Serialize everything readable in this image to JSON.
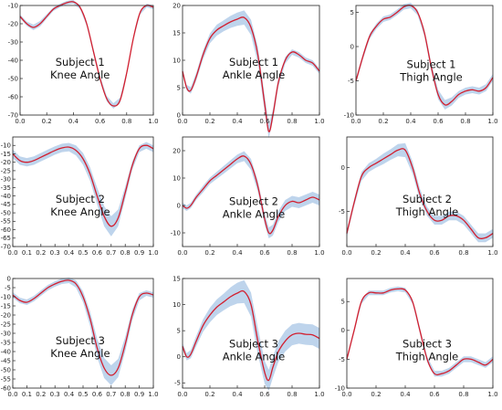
{
  "chart_data": [
    {
      "type": "line",
      "label": [
        "Subject 1",
        "Knee Angle"
      ],
      "xlim": [
        0,
        1
      ],
      "ylim": [
        -70,
        -10
      ],
      "yticks": [
        -10,
        -20,
        -30,
        -40,
        -50,
        -60,
        -70
      ],
      "xticks": [
        "0.0",
        "0.2",
        "0.4",
        "0.6",
        "0.8",
        "1.0"
      ],
      "x": [
        0,
        0.05,
        0.1,
        0.15,
        0.2,
        0.25,
        0.3,
        0.35,
        0.4,
        0.45,
        0.5,
        0.55,
        0.6,
        0.65,
        0.7,
        0.75,
        0.8,
        0.85,
        0.9,
        0.95,
        1.0
      ],
      "mean": [
        -16,
        -20,
        -22,
        -20,
        -16,
        -12,
        -10,
        -8.5,
        -8,
        -11,
        -20,
        -35,
        -50,
        -61,
        -65,
        -62,
        -47,
        -28,
        -14,
        -10,
        -11
      ],
      "sd": [
        1,
        1.2,
        1.5,
        1.5,
        1.2,
        1,
        1,
        1,
        1,
        1,
        1.2,
        1.5,
        1.5,
        1.5,
        1.5,
        1.5,
        1.2,
        1,
        1,
        1,
        1
      ]
    },
    {
      "type": "line",
      "label": [
        "Subject 1",
        "Ankle Angle"
      ],
      "xlim": [
        0,
        1
      ],
      "ylim": [
        0,
        20
      ],
      "yticks": [
        20,
        15,
        10,
        5,
        0
      ],
      "xticks": [
        "0.0",
        "0.2",
        "0.4",
        "0.6",
        "0.8",
        "1.0"
      ],
      "x": [
        0,
        0.03,
        0.06,
        0.1,
        0.15,
        0.2,
        0.25,
        0.3,
        0.35,
        0.4,
        0.45,
        0.5,
        0.55,
        0.6,
        0.63,
        0.66,
        0.7,
        0.75,
        0.8,
        0.85,
        0.9,
        0.95,
        1.0
      ],
      "mean": [
        8,
        5,
        4.5,
        7,
        11,
        14,
        15.5,
        16.3,
        17,
        17.5,
        17.8,
        16,
        11,
        2,
        -3,
        0,
        6,
        10,
        11.5,
        11,
        10,
        9.5,
        8
      ],
      "sd": [
        0.5,
        0.5,
        0.6,
        0.7,
        0.8,
        0.9,
        1,
        1,
        1.1,
        1.2,
        1.3,
        1.4,
        1.5,
        1.5,
        1.2,
        1,
        0.8,
        0.6,
        0.5,
        0.5,
        0.5,
        0.5,
        0.5
      ]
    },
    {
      "type": "line",
      "label": [
        "Subject 1",
        "Thigh Angle"
      ],
      "xlim": [
        0,
        1
      ],
      "ylim": [
        -10,
        6
      ],
      "yticks": [
        5,
        0,
        -5,
        -10
      ],
      "xticks": [
        "0.0",
        "0.2",
        "0.4",
        "0.6",
        "0.8",
        "1.0"
      ],
      "x": [
        0,
        0.05,
        0.1,
        0.15,
        0.2,
        0.25,
        0.3,
        0.35,
        0.4,
        0.45,
        0.5,
        0.55,
        0.6,
        0.65,
        0.7,
        0.75,
        0.8,
        0.85,
        0.9,
        0.95,
        1.0
      ],
      "mean": [
        -5,
        -1.5,
        1.5,
        3,
        4,
        4.3,
        5,
        5.8,
        6,
        5,
        2,
        -3,
        -7,
        -8.5,
        -8,
        -7,
        -6.5,
        -6.3,
        -6.5,
        -6,
        -4.5
      ],
      "sd": [
        0.4,
        0.4,
        0.4,
        0.4,
        0.4,
        0.4,
        0.4,
        0.4,
        0.4,
        0.4,
        0.5,
        0.6,
        0.7,
        0.7,
        0.6,
        0.5,
        0.5,
        0.5,
        0.5,
        0.5,
        0.5
      ]
    },
    {
      "type": "line",
      "label": [
        "Subject 2",
        "Knee Angle"
      ],
      "xlim": [
        0,
        1
      ],
      "ylim": [
        -70,
        -5
      ],
      "yticks": [
        -10,
        -15,
        -20,
        -25,
        -30,
        -35,
        -40,
        -45,
        -50,
        -55,
        -60,
        -65,
        -70
      ],
      "xticks": [
        "0.0",
        "0.1",
        "0.2",
        "0.3",
        "0.4",
        "0.5",
        "0.6",
        "0.7",
        "0.8",
        "0.9",
        "1.0"
      ],
      "x": [
        0,
        0.05,
        0.1,
        0.15,
        0.2,
        0.25,
        0.3,
        0.35,
        0.4,
        0.45,
        0.5,
        0.55,
        0.6,
        0.65,
        0.7,
        0.75,
        0.8,
        0.85,
        0.9,
        0.95,
        1.0
      ],
      "mean": [
        -15,
        -19,
        -20,
        -19,
        -17,
        -15,
        -13,
        -11.5,
        -11,
        -13,
        -18,
        -27,
        -40,
        -52,
        -58,
        -53,
        -38,
        -22,
        -12,
        -10,
        -12
      ],
      "sd": [
        2.5,
        2.5,
        2.5,
        2.5,
        2.5,
        2.5,
        2.5,
        2.5,
        2.5,
        3,
        3.5,
        4,
        5,
        6,
        6,
        5,
        3.5,
        2.5,
        2,
        2,
        2
      ]
    },
    {
      "type": "line",
      "label": [
        "Subject 2",
        "Ankle Angle"
      ],
      "xlim": [
        0,
        1
      ],
      "ylim": [
        -15,
        25
      ],
      "yticks": [
        20,
        10,
        0,
        -10
      ],
      "xticks": [
        "0.0",
        "0.2",
        "0.4",
        "0.6",
        "0.8",
        "1.0"
      ],
      "x": [
        0,
        0.03,
        0.06,
        0.1,
        0.15,
        0.2,
        0.25,
        0.3,
        0.35,
        0.4,
        0.45,
        0.5,
        0.55,
        0.6,
        0.63,
        0.66,
        0.7,
        0.75,
        0.8,
        0.85,
        0.9,
        0.95,
        1.0
      ],
      "mean": [
        0,
        -1,
        0,
        3,
        6,
        9,
        11,
        13,
        15,
        17,
        18,
        15,
        7,
        -5,
        -10,
        -9,
        -4,
        0,
        1.5,
        1,
        2,
        3,
        2
      ],
      "sd": [
        1,
        1,
        1,
        1,
        1.2,
        1.2,
        1.3,
        1.4,
        1.5,
        1.6,
        1.8,
        2,
        2,
        2,
        2,
        2,
        2,
        2,
        2,
        2,
        2,
        2,
        2
      ]
    },
    {
      "type": "line",
      "label": [
        "Subject 2",
        "Thigh Angle"
      ],
      "xlim": [
        0,
        1
      ],
      "ylim": [
        -9,
        3.5
      ],
      "yticks": [
        0,
        -5
      ],
      "xticks": [
        "0.0",
        "0.2",
        "0.4",
        "0.6",
        "0.8",
        "1.0"
      ],
      "x": [
        0,
        0.05,
        0.1,
        0.15,
        0.2,
        0.25,
        0.3,
        0.35,
        0.4,
        0.45,
        0.5,
        0.55,
        0.6,
        0.65,
        0.7,
        0.75,
        0.8,
        0.85,
        0.9,
        0.95,
        1.0
      ],
      "mean": [
        -7.5,
        -4,
        -1,
        0,
        0.5,
        1,
        1.5,
        2,
        2,
        0,
        -3,
        -5,
        -6,
        -6,
        -5.5,
        -5.5,
        -6,
        -7,
        -8,
        -8,
        -7.5
      ],
      "sd": [
        0.4,
        0.4,
        0.5,
        0.5,
        0.5,
        0.6,
        0.6,
        0.7,
        0.8,
        0.7,
        0.6,
        0.5,
        0.5,
        0.5,
        0.5,
        0.5,
        0.5,
        0.5,
        0.5,
        0.5,
        0.5
      ]
    },
    {
      "type": "line",
      "label": [
        "Subject 3",
        "Knee Angle"
      ],
      "xlim": [
        0,
        1
      ],
      "ylim": [
        -60,
        0
      ],
      "yticks": [
        0,
        -5,
        -10,
        -15,
        -20,
        -25,
        -30,
        -35,
        -40,
        -45,
        -50,
        -55,
        -60
      ],
      "xticks": [
        "0.0",
        "0.1",
        "0.2",
        "0.3",
        "0.4",
        "0.5",
        "0.6",
        "0.7",
        "0.8",
        "0.9",
        "1.0"
      ],
      "x": [
        0,
        0.05,
        0.1,
        0.15,
        0.2,
        0.25,
        0.3,
        0.35,
        0.4,
        0.45,
        0.5,
        0.55,
        0.6,
        0.65,
        0.7,
        0.75,
        0.8,
        0.85,
        0.9,
        0.95,
        1.0
      ],
      "mean": [
        -9,
        -12,
        -13,
        -11,
        -8,
        -5,
        -3,
        -1.5,
        -1,
        -3,
        -10,
        -22,
        -38,
        -49,
        -53,
        -49,
        -36,
        -20,
        -10,
        -8,
        -9
      ],
      "sd": [
        1.5,
        1.5,
        1.5,
        1.5,
        1.5,
        1.5,
        1.5,
        1.5,
        1.5,
        2,
        3,
        4,
        5,
        5.5,
        5.5,
        5,
        4,
        3,
        2,
        1.5,
        1.5
      ]
    },
    {
      "type": "line",
      "label": [
        "Subject 3",
        "Ankle Angle"
      ],
      "xlim": [
        0,
        1
      ],
      "ylim": [
        -6,
        15
      ],
      "yticks": [
        15,
        10,
        5,
        0,
        -5
      ],
      "xticks": [
        "0.0",
        "0.2",
        "0.4",
        "0.6",
        "0.8",
        "1.0"
      ],
      "x": [
        0,
        0.03,
        0.06,
        0.1,
        0.15,
        0.2,
        0.25,
        0.3,
        0.35,
        0.4,
        0.45,
        0.5,
        0.55,
        0.6,
        0.63,
        0.66,
        0.7,
        0.75,
        0.8,
        0.85,
        0.9,
        0.95,
        1.0
      ],
      "mean": [
        2,
        0,
        0.5,
        3,
        6,
        8,
        9.5,
        10.5,
        11.5,
        12.2,
        12.5,
        10,
        3,
        -3,
        -4.5,
        -2,
        1,
        3,
        4.2,
        4.5,
        4.3,
        4.2,
        3.5
      ],
      "sd": [
        0.6,
        0.7,
        0.8,
        1,
        1.2,
        1.4,
        1.5,
        1.6,
        1.8,
        2,
        2.2,
        2.3,
        2.5,
        2.2,
        2,
        2,
        2,
        2,
        2,
        2,
        2,
        2,
        2
      ]
    },
    {
      "type": "line",
      "label": [
        "Subject 3",
        "Thigh Angle"
      ],
      "xlim": [
        0,
        1
      ],
      "ylim": [
        -10,
        9
      ],
      "yticks": [
        5,
        0,
        -5,
        -10
      ],
      "xticks": [
        "0.0",
        "0.2",
        "0.4",
        "0.6",
        "0.8",
        "1.0"
      ],
      "x": [
        0,
        0.05,
        0.1,
        0.15,
        0.2,
        0.25,
        0.3,
        0.35,
        0.4,
        0.45,
        0.5,
        0.55,
        0.6,
        0.65,
        0.7,
        0.75,
        0.8,
        0.85,
        0.9,
        0.95,
        1.0
      ],
      "mean": [
        -5,
        0,
        5,
        6.5,
        6.5,
        6.5,
        7,
        7.2,
        7,
        5,
        0,
        -5,
        -7.5,
        -7.5,
        -7,
        -6,
        -5,
        -5,
        -5.5,
        -6,
        -5
      ],
      "sd": [
        0.4,
        0.4,
        0.4,
        0.4,
        0.4,
        0.4,
        0.4,
        0.4,
        0.4,
        0.4,
        0.5,
        0.5,
        0.5,
        0.5,
        0.5,
        0.5,
        0.5,
        0.5,
        0.5,
        0.5,
        0.5
      ]
    }
  ],
  "colors": {
    "mean_line": "#d21f2f",
    "band": "#a8c6e6"
  }
}
